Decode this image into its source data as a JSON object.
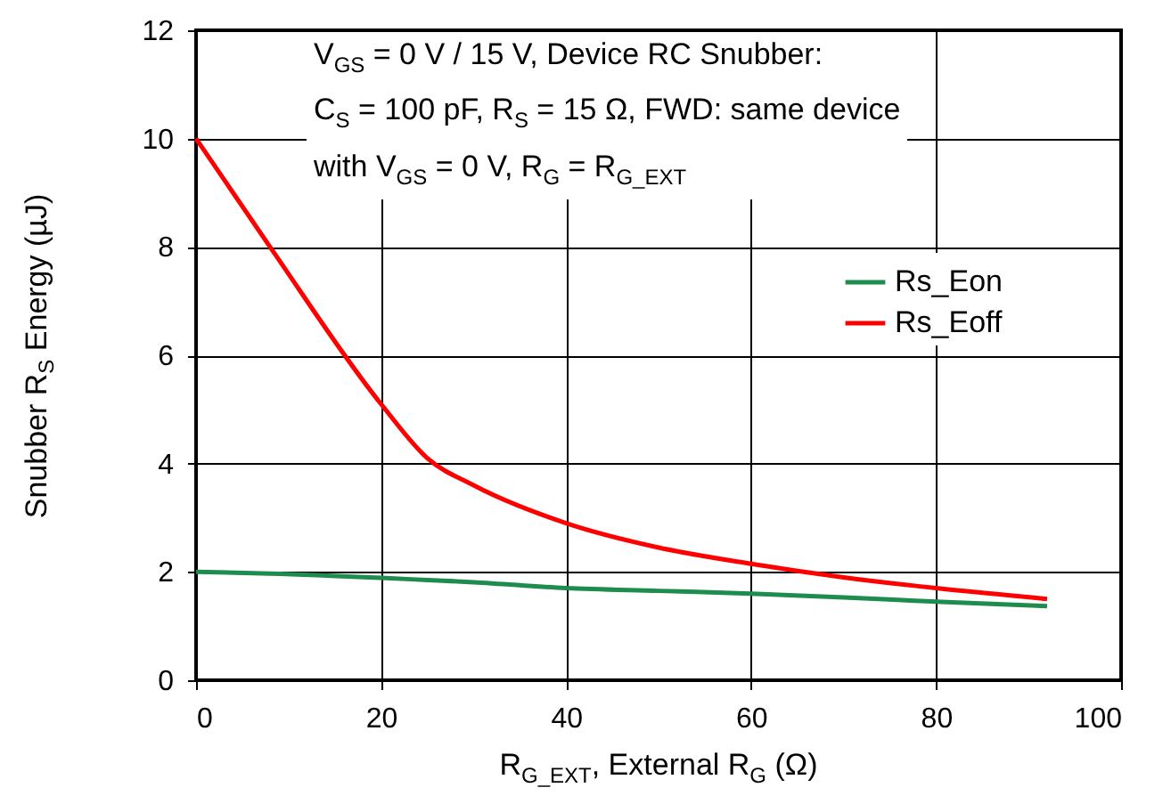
{
  "chart_data": {
    "type": "line",
    "xlabel": "R$_{G_EXT}$, External R$_{G}$ (Ω)",
    "ylabel": "Snubber R$_{S}$ Energy (µJ)",
    "annotations": [
      "V$_{GS}$ = 0 V / 15 V, Device RC Snubber:",
      "C$_{S}$ = 100 pF, R$_{S}$ = 15 Ω, FWD: same device",
      "with V$_{GS}$ = 0 V, R$_{G}$ = R$_{G_EXT}$"
    ],
    "x": [
      0,
      8,
      20,
      25,
      30,
      40,
      50,
      60,
      70,
      80,
      92
    ],
    "series": [
      {
        "name": "Rs_Eon",
        "color": "#1e8c4e",
        "values": [
          2.0,
          1.97,
          1.89,
          1.85,
          1.81,
          1.7,
          1.65,
          1.6,
          1.53,
          1.45,
          1.37
        ]
      },
      {
        "name": "Rs_Eoff",
        "color": "#ff0000",
        "values": [
          10.0,
          8.0,
          5.1,
          4.1,
          3.6,
          2.9,
          2.45,
          2.15,
          1.9,
          1.7,
          1.5
        ]
      }
    ],
    "xlim": [
      0,
      100
    ],
    "xticks": [
      0,
      20,
      40,
      60,
      80,
      100
    ],
    "ylim": [
      0,
      12
    ],
    "yticks": [
      0,
      2,
      4,
      6,
      8,
      10,
      12
    ],
    "grid": true,
    "legend": "right",
    "line_style": "solid",
    "marker": "none"
  }
}
